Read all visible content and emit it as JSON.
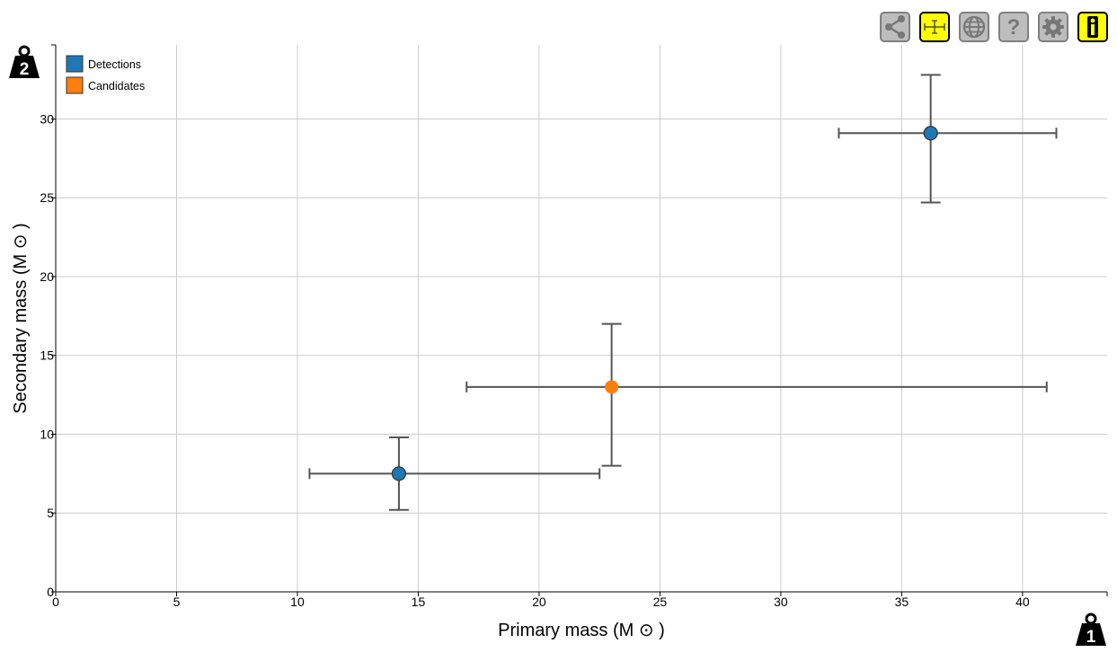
{
  "toolbar": {
    "buttons": [
      {
        "name": "share-icon",
        "active": false
      },
      {
        "name": "error-bars-icon",
        "active": true
      },
      {
        "name": "globe-icon",
        "active": false
      },
      {
        "name": "help-icon",
        "active": false
      },
      {
        "name": "settings-icon",
        "active": false
      },
      {
        "name": "info-icon",
        "active": true
      }
    ]
  },
  "axis_badges": {
    "x": "1",
    "y": "2"
  },
  "chart_data": {
    "type": "scatter",
    "xlabel": "Primary mass (M ⊙ )",
    "ylabel": "Secondary mass (M ⊙ )",
    "xlim": [
      0,
      43.5
    ],
    "ylim": [
      0,
      34.7
    ],
    "xticks": [
      0,
      5,
      10,
      15,
      20,
      25,
      30,
      35,
      40
    ],
    "yticks": [
      0,
      5,
      10,
      15,
      20,
      25,
      30
    ],
    "grid": true,
    "legend_position": "top-left",
    "colors": {
      "Detections": "#1f77b4",
      "Candidates": "#ff7f0e",
      "errorbar": "#555555",
      "grid": "#cccccc"
    },
    "series": [
      {
        "name": "Detections",
        "points": [
          {
            "x": 36.2,
            "y": 29.1,
            "x_err": [
              32.4,
              41.4
            ],
            "y_err": [
              24.7,
              32.8
            ]
          },
          {
            "x": 14.2,
            "y": 7.5,
            "x_err": [
              10.5,
              22.5
            ],
            "y_err": [
              5.2,
              9.8
            ]
          }
        ]
      },
      {
        "name": "Candidates",
        "points": [
          {
            "x": 23.0,
            "y": 13.0,
            "x_err": [
              17.0,
              41.0
            ],
            "y_err": [
              8.0,
              17.0
            ]
          }
        ]
      }
    ]
  }
}
